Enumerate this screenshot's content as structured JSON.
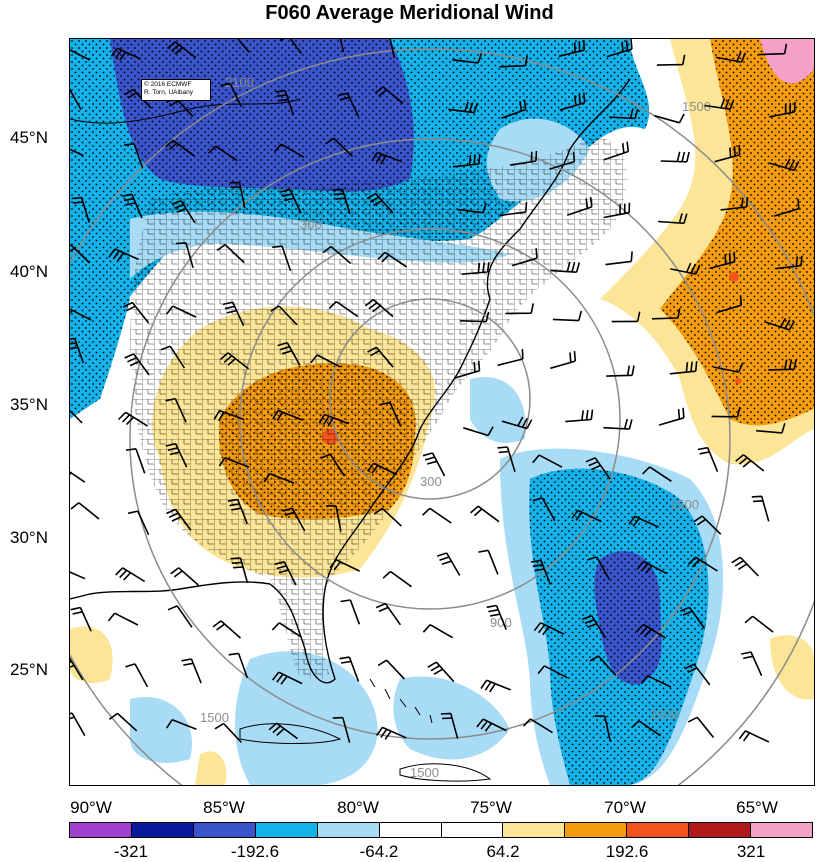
{
  "title": "F060 Average Meridional Wind",
  "credit": {
    "line1": "© 2016 ECMWF",
    "line2": "R. Torn, UAlbany"
  },
  "lat_labels": [
    "45°N",
    "40°N",
    "35°N",
    "30°N",
    "25°N"
  ],
  "lon_labels": [
    "90°W",
    "85°W",
    "80°W",
    "75°W",
    "70°W",
    "65°W"
  ],
  "contour_labels": [
    "2100",
    "1500",
    "300",
    "900",
    "1500",
    "1500",
    "300",
    "1500",
    "1500"
  ],
  "colorbar": {
    "colors": [
      "#a040d0",
      "#0a1a9c",
      "#3a55cc",
      "#14b2ea",
      "#a8dcf6",
      "#ffffff",
      "#ffffff",
      "#fce597",
      "#f59b0e",
      "#f2551b",
      "#b01a1a",
      "#f5a0c8"
    ],
    "labels": [
      "-321",
      "-192.6",
      "-64.2",
      "64.2",
      "192.6",
      "321"
    ]
  },
  "fill_colors": {
    "strong_neg": "#3a55cc",
    "neg": "#14b2ea",
    "weak_neg": "#a8dcf6",
    "weak_pos": "#fce597",
    "pos": "#f59b0e",
    "strong_pos": "#f2551b"
  }
}
